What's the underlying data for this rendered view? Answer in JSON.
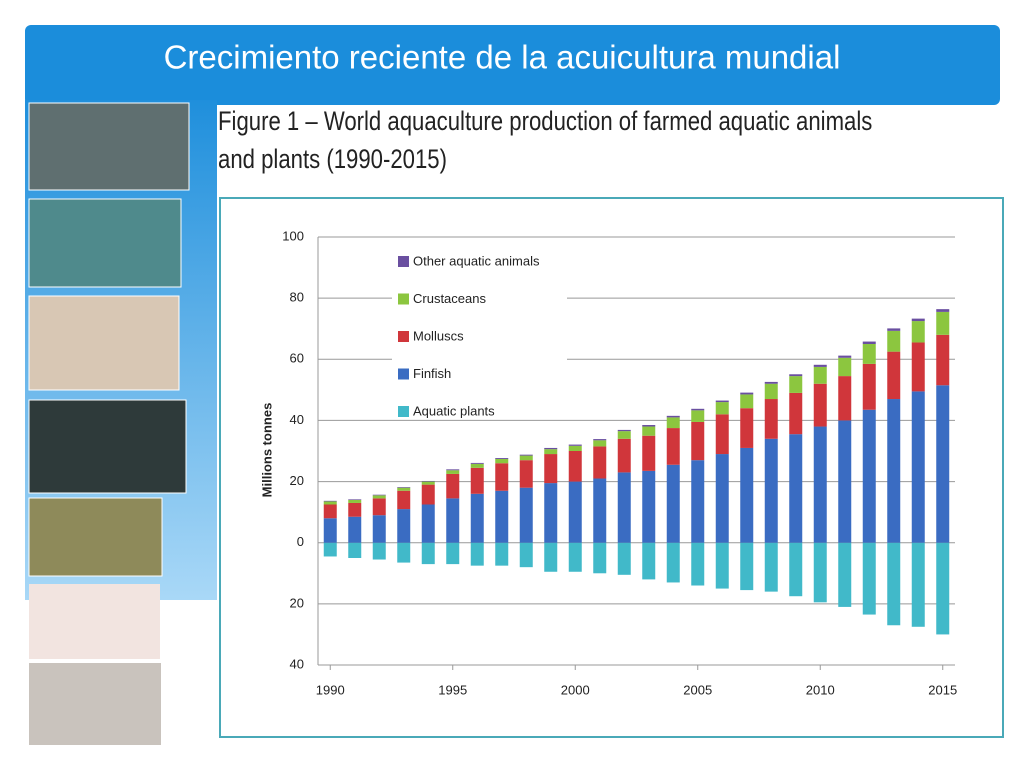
{
  "slide_title": "Crecimiento  reciente de la acuicultura mundial",
  "chart_data": {
    "type": "bar",
    "title": "Figure 1 – World aquaculture production of farmed aquatic animals and plants (1990-2015)",
    "y_label": "Millions tonnes",
    "stacked": true,
    "x": [
      1990,
      1991,
      1992,
      1993,
      1994,
      1995,
      1996,
      1997,
      1998,
      1999,
      2000,
      2001,
      2002,
      2003,
      2004,
      2005,
      2006,
      2007,
      2008,
      2009,
      2010,
      2011,
      2012,
      2013,
      2014,
      2015
    ],
    "xlim": [
      1989.5,
      2015.5
    ],
    "xticks": [
      1990,
      1995,
      2000,
      2005,
      2010,
      2015
    ],
    "ylim": [
      -40,
      100
    ],
    "yticks": [
      {
        "value": -40,
        "label": "40"
      },
      {
        "value": -20,
        "label": "20"
      },
      0,
      20,
      40,
      60,
      80,
      100
    ],
    "grid": true,
    "legend": "upper left",
    "series": [
      {
        "name": "Aquatic plants",
        "color": "#41b9c9",
        "values": [
          -4.5,
          -5,
          -5.5,
          -6.5,
          -7,
          -7,
          -7.5,
          -7.5,
          -8,
          -9.5,
          -9.5,
          -10,
          -10.5,
          -12,
          -13,
          -14,
          -15,
          -15.5,
          -16,
          -17.5,
          -19.5,
          -21,
          -23.5,
          -27,
          -27.5,
          -30
        ]
      },
      {
        "name": "Finfish",
        "color": "#3a6cc2",
        "values": [
          8,
          8.5,
          9,
          11,
          12.5,
          14.5,
          16,
          17,
          18,
          19.5,
          20,
          21,
          23,
          23.5,
          25.5,
          27,
          29,
          31,
          34,
          35.5,
          38,
          40,
          43.5,
          47,
          49.5,
          51.5
        ]
      },
      {
        "name": "Molluscs",
        "color": "#d0363b",
        "values": [
          4.5,
          4.5,
          5.5,
          6,
          6.5,
          8,
          8.5,
          9,
          9,
          9.5,
          10,
          10.5,
          11,
          11.5,
          12,
          12.5,
          13,
          13,
          13,
          13.5,
          14,
          14.5,
          15,
          15.5,
          16,
          16.5
        ]
      },
      {
        "name": "Crustaceans",
        "color": "#8cc63f",
        "values": [
          1,
          1,
          1,
          1,
          1,
          1.2,
          1.3,
          1.4,
          1.5,
          1.6,
          1.7,
          2,
          2.5,
          3,
          3.5,
          3.8,
          4,
          4.5,
          5,
          5.5,
          5.5,
          6,
          6.5,
          6.8,
          7,
          7.5
        ]
      },
      {
        "name": "Other aquatic animals",
        "color": "#6a4fa0",
        "values": [
          0.2,
          0.2,
          0.2,
          0.2,
          0.2,
          0.3,
          0.3,
          0.3,
          0.3,
          0.4,
          0.4,
          0.4,
          0.4,
          0.5,
          0.5,
          0.5,
          0.5,
          0.6,
          0.6,
          0.6,
          0.7,
          0.7,
          0.8,
          0.8,
          0.8,
          0.9
        ]
      }
    ]
  }
}
